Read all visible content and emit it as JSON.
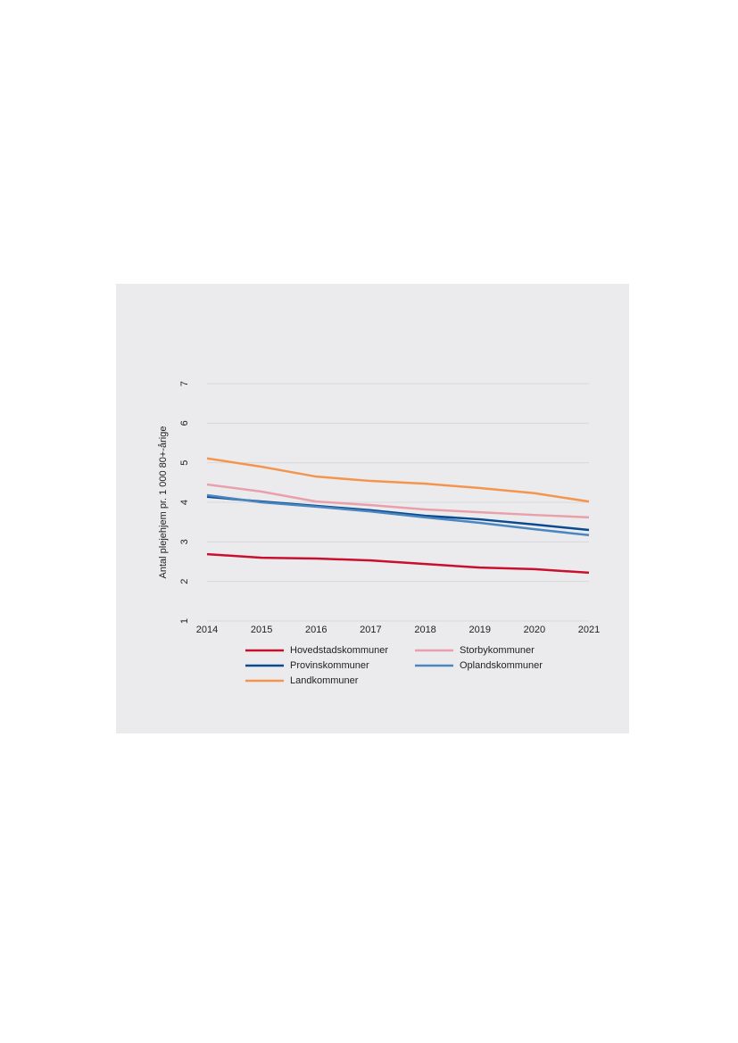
{
  "chart_data": {
    "type": "line",
    "y_label": "Antal plejehjem pr. 1 000 80+-årige",
    "x": [
      2014,
      2015,
      2016,
      2017,
      2018,
      2019,
      2020,
      2021
    ],
    "xlim": [
      2014,
      2021
    ],
    "xticks": [
      2014,
      2015,
      2016,
      2017,
      2018,
      2019,
      2020,
      2021
    ],
    "ylim": [
      1,
      7
    ],
    "yticks": [
      1,
      2,
      3,
      4,
      5,
      6,
      7
    ],
    "grid": true,
    "series": [
      {
        "name": "Hovedstadskommuner",
        "color": "#c8102e",
        "values": [
          2.69,
          2.6,
          2.58,
          2.53,
          2.44,
          2.35,
          2.31,
          2.22
        ]
      },
      {
        "name": "Storbykommuner",
        "color": "#e8a0aa",
        "values": [
          4.45,
          4.27,
          4.02,
          3.93,
          3.82,
          3.75,
          3.68,
          3.62
        ]
      },
      {
        "name": "Provinskommuner",
        "color": "#0a4a8f",
        "values": [
          4.14,
          4.02,
          3.91,
          3.8,
          3.66,
          3.57,
          3.44,
          3.3
        ]
      },
      {
        "name": "Oplandskommuner",
        "color": "#4a86c0",
        "values": [
          4.18,
          4.0,
          3.89,
          3.77,
          3.62,
          3.48,
          3.32,
          3.17
        ]
      },
      {
        "name": "Landkommuner",
        "color": "#f4954f",
        "values": [
          5.11,
          4.9,
          4.65,
          4.54,
          4.47,
          4.36,
          4.23,
          4.02
        ]
      }
    ]
  }
}
